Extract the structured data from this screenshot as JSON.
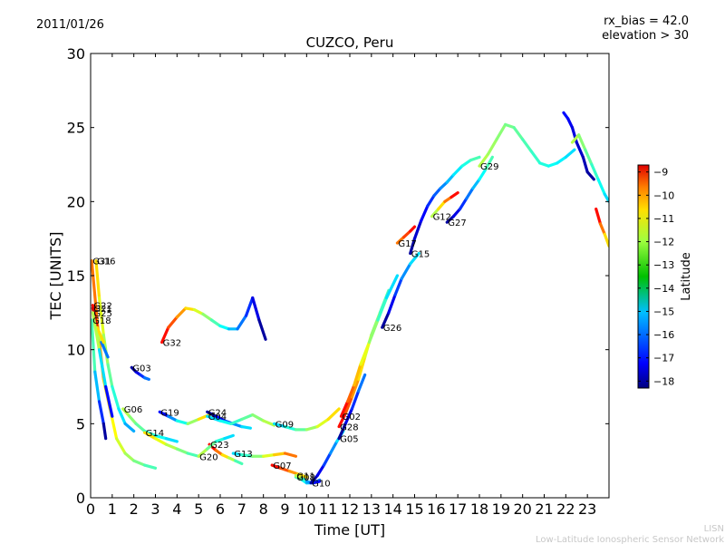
{
  "header": {
    "date": "2011/01/26",
    "title": "CUZCO, Peru",
    "rx_bias": "rx_bias = 42.0",
    "elevation": "elevation > 30"
  },
  "footer": {
    "line1": "LISN",
    "line2": "Low-Latitude Ionospheric Sensor Network"
  },
  "colorbar": {
    "label": "Latitude",
    "ticks": [
      "−9",
      "−10",
      "−11",
      "−12",
      "−13",
      "−14",
      "−15",
      "−16",
      "−17",
      "−18"
    ],
    "range": [
      -18.3,
      -8.7
    ],
    "colormap": "jet"
  },
  "chart_data": {
    "type": "line",
    "title": "CUZCO, Peru",
    "xlabel": "Time [UT]",
    "ylabel": "TEC [UNITS]",
    "xlim": [
      0,
      24
    ],
    "ylim": [
      0,
      30
    ],
    "xticks": [
      "0",
      "1",
      "2",
      "3",
      "4",
      "5",
      "6",
      "7",
      "8",
      "9",
      "10",
      "11",
      "12",
      "13",
      "14",
      "15",
      "16",
      "17",
      "18",
      "19",
      "20",
      "21",
      "22",
      "23"
    ],
    "yticks": [
      "0",
      "5",
      "10",
      "15",
      "20",
      "25",
      "30"
    ],
    "grid": false,
    "series": [
      {
        "name": "G16",
        "lat": [
          -12,
          -15.5
        ],
        "x": [
          0.25,
          0.4,
          0.6,
          0.8,
          1.0,
          1.3,
          1.6,
          2.0
        ],
        "y": [
          16.0,
          13.5,
          11.0,
          9.0,
          7.5,
          6.0,
          5.0,
          4.5
        ]
      },
      {
        "name": "G31",
        "lat": [
          -11,
          -14
        ],
        "x": [
          0.05,
          0.3,
          0.6,
          0.9,
          1.2,
          1.6,
          2.0,
          2.5,
          3.0
        ],
        "y": [
          16.0,
          12.0,
          8.0,
          6.0,
          4.0,
          3.0,
          2.5,
          2.2,
          2.0
        ]
      },
      {
        "name": "G22",
        "lat": [
          -10,
          -16
        ],
        "x": [
          0.1,
          0.3,
          0.5,
          0.8
        ],
        "y": [
          13.0,
          11.5,
          10.5,
          9.5
        ]
      },
      {
        "name": "G21",
        "lat": [
          -9.5,
          -12
        ],
        "x": [
          0.1,
          0.3,
          0.6
        ],
        "y": [
          12.8,
          11.5,
          10.5
        ]
      },
      {
        "name": "G25",
        "lat": [
          -13,
          -17
        ],
        "x": [
          0.1,
          0.4,
          0.7,
          1.0
        ],
        "y": [
          12.5,
          10.0,
          7.5,
          5.5
        ]
      },
      {
        "name": "G18",
        "lat": [
          -14,
          -18
        ],
        "x": [
          0.05,
          0.2,
          0.4,
          0.6,
          0.7
        ],
        "y": [
          12.0,
          8.5,
          6.5,
          5.0,
          4.0
        ]
      },
      {
        "name": "G32",
        "lat": [
          -10,
          -18
        ],
        "x": [
          3.3,
          3.6,
          4.0,
          4.4,
          4.8,
          5.2,
          5.6,
          6.0,
          6.4,
          6.8,
          7.2,
          7.5,
          7.8,
          8.1
        ],
        "y": [
          10.5,
          11.5,
          12.2,
          12.8,
          12.7,
          12.4,
          12.0,
          11.6,
          11.4,
          11.4,
          12.3,
          13.5,
          12.0,
          10.7
        ]
      },
      {
        "name": "G03",
        "lat": [
          -18,
          -16
        ],
        "x": [
          1.9,
          2.1,
          2.3,
          2.5,
          2.7
        ],
        "y": [
          8.8,
          8.5,
          8.3,
          8.1,
          8.0
        ]
      },
      {
        "name": "G06",
        "lat": [
          -13,
          -15
        ],
        "x": [
          1.5,
          1.8,
          2.1,
          2.5,
          3.0,
          3.5,
          4.0
        ],
        "y": [
          6.0,
          5.5,
          5.0,
          4.5,
          4.2,
          4.0,
          3.8
        ]
      },
      {
        "name": "G19",
        "lat": [
          -17,
          -12
        ],
        "x": [
          3.2,
          3.6,
          4.0,
          4.5,
          5.0,
          5.5
        ],
        "y": [
          5.8,
          5.5,
          5.2,
          5.0,
          5.3,
          5.6
        ]
      },
      {
        "name": "G14",
        "lat": [
          -12,
          -14
        ],
        "x": [
          2.5,
          3.0,
          3.5,
          4.0,
          4.5,
          5.0
        ],
        "y": [
          4.4,
          4.0,
          3.6,
          3.3,
          3.0,
          2.8
        ]
      },
      {
        "name": "G24",
        "lat": [
          -18,
          -15
        ],
        "x": [
          5.4,
          5.8,
          6.2,
          6.6,
          7.0,
          7.4
        ],
        "y": [
          5.8,
          5.5,
          5.2,
          5.0,
          4.8,
          4.7
        ]
      },
      {
        "name": "G04",
        "lat": [
          -15,
          -13
        ],
        "x": [
          5.4,
          6.0,
          6.5,
          7.0,
          7.5,
          8.0,
          8.5
        ],
        "y": [
          5.5,
          5.2,
          5.0,
          5.3,
          5.6,
          5.2,
          4.9
        ]
      },
      {
        "name": "G23",
        "lat": [
          -10,
          -14
        ],
        "x": [
          5.5,
          5.8,
          6.1,
          6.4,
          6.7,
          7.0
        ],
        "y": [
          3.6,
          3.2,
          2.9,
          2.7,
          2.5,
          2.3
        ]
      },
      {
        "name": "G20",
        "lat": [
          -13,
          -15
        ],
        "x": [
          5.0,
          5.4,
          5.8,
          6.2,
          6.6
        ],
        "y": [
          2.8,
          3.3,
          3.8,
          4.0,
          4.2
        ]
      },
      {
        "name": "G13",
        "lat": [
          -15,
          -11
        ],
        "x": [
          6.6,
          7.0,
          7.5,
          8.0,
          8.5,
          9.0,
          9.5
        ],
        "y": [
          3.0,
          2.9,
          2.8,
          2.8,
          2.9,
          3.0,
          2.8
        ]
      },
      {
        "name": "G07",
        "lat": [
          -10,
          -12
        ],
        "x": [
          8.4,
          8.8,
          9.2,
          9.6,
          10.0
        ],
        "y": [
          2.2,
          2.0,
          1.8,
          1.6,
          1.4
        ]
      },
      {
        "name": "G08",
        "lat": [
          -14,
          -16
        ],
        "x": [
          9.5,
          9.8,
          10.0,
          10.3,
          10.6
        ],
        "y": [
          1.4,
          1.2,
          1.0,
          1.0,
          1.2
        ]
      },
      {
        "name": "G11",
        "lat": [
          -13,
          -17
        ],
        "x": [
          9.5,
          9.8,
          10.0,
          10.3,
          10.6
        ],
        "y": [
          1.5,
          1.3,
          1.1,
          1.0,
          1.1
        ]
      },
      {
        "name": "G10",
        "lat": [
          -18,
          -15
        ],
        "x": [
          10.2,
          10.5,
          10.8,
          11.1,
          11.4,
          11.7
        ],
        "y": [
          1.0,
          1.5,
          2.2,
          3.0,
          3.8,
          4.5
        ]
      },
      {
        "name": "G09",
        "lat": [
          -15,
          -12
        ],
        "x": [
          8.5,
          9.0,
          9.5,
          10.0,
          10.5,
          11.0,
          11.5
        ],
        "y": [
          5.0,
          4.8,
          4.6,
          4.6,
          4.8,
          5.3,
          6.0
        ]
      },
      {
        "name": "G28",
        "lat": [
          -10,
          -14
        ],
        "x": [
          11.5,
          11.8,
          12.1,
          12.4,
          12.7,
          13.0,
          13.4,
          13.8
        ],
        "y": [
          4.8,
          5.7,
          6.8,
          8.0,
          9.5,
          11.0,
          12.5,
          14.0
        ]
      },
      {
        "name": "G02",
        "lat": [
          -10,
          -15
        ],
        "x": [
          11.6,
          11.9,
          12.2,
          12.5,
          12.9,
          13.3,
          13.7,
          14.2
        ],
        "y": [
          5.5,
          6.5,
          7.6,
          9.0,
          10.5,
          12.0,
          13.5,
          15.0
        ]
      },
      {
        "name": "G05",
        "lat": [
          -18,
          -16
        ],
        "x": [
          11.5,
          11.8,
          12.1,
          12.4,
          12.7
        ],
        "y": [
          4.0,
          5.0,
          6.0,
          7.2,
          8.3
        ]
      },
      {
        "name": "G26",
        "lat": [
          -18,
          -15
        ],
        "x": [
          13.5,
          13.8,
          14.1,
          14.4,
          14.8,
          15.2
        ],
        "y": [
          11.5,
          12.5,
          13.7,
          14.8,
          15.8,
          16.5
        ]
      },
      {
        "name": "G17",
        "lat": [
          -11,
          -10
        ],
        "x": [
          14.2,
          14.5,
          14.8,
          15.0
        ],
        "y": [
          17.2,
          17.6,
          18.0,
          18.3
        ]
      },
      {
        "name": "G15",
        "lat": [
          -18,
          -14
        ],
        "x": [
          14.8,
          15.0,
          15.3,
          15.6,
          15.9,
          16.2,
          16.5,
          16.8,
          17.2,
          17.6,
          18.0
        ],
        "y": [
          16.5,
          17.5,
          18.7,
          19.7,
          20.4,
          20.9,
          21.3,
          21.8,
          22.4,
          22.8,
          23.0
        ]
      },
      {
        "name": "G12",
        "lat": [
          -13,
          -10
        ],
        "x": [
          15.8,
          16.1,
          16.4,
          16.7,
          17.0
        ],
        "y": [
          19.0,
          19.5,
          20.0,
          20.3,
          20.6
        ]
      },
      {
        "name": "G27",
        "lat": [
          -18,
          -14
        ],
        "x": [
          16.5,
          16.8,
          17.1,
          17.4,
          17.7,
          18.0,
          18.3,
          18.6
        ],
        "y": [
          18.6,
          19.0,
          19.5,
          20.2,
          20.9,
          21.5,
          22.2,
          23.0
        ]
      },
      {
        "name": "G29",
        "lat": [
          -13,
          -15
        ],
        "x": [
          18.0,
          18.4,
          18.8,
          19.2,
          19.6,
          20.0,
          20.4,
          20.8,
          21.2,
          21.6,
          22.0,
          22.4
        ],
        "y": [
          22.4,
          23.2,
          24.2,
          25.2,
          25.0,
          24.2,
          23.4,
          22.6,
          22.4,
          22.6,
          23.0,
          23.5
        ]
      },
      {
        "name": "",
        "lat": [
          -17,
          -18
        ],
        "x": [
          21.9,
          22.1,
          22.3,
          22.5,
          22.8,
          23.0,
          23.3
        ],
        "y": [
          26.0,
          25.6,
          25.0,
          24.0,
          23.0,
          22.0,
          21.5
        ]
      },
      {
        "name": "",
        "lat": [
          -13,
          -15
        ],
        "x": [
          22.3,
          22.6,
          22.9,
          23.2,
          23.5,
          23.8,
          24.0
        ],
        "y": [
          24.0,
          24.5,
          23.5,
          22.5,
          21.5,
          20.5,
          20.0
        ]
      },
      {
        "name": "",
        "lat": [
          -10,
          -12
        ],
        "x": [
          23.4,
          23.6,
          23.8,
          24.0
        ],
        "y": [
          19.5,
          18.5,
          17.8,
          17.0
        ]
      }
    ]
  }
}
